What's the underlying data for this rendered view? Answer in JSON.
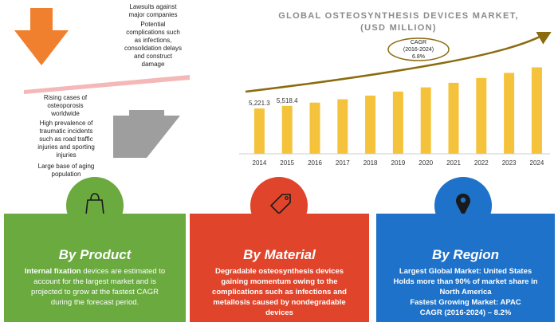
{
  "factors": {
    "restraint": [
      "Lawsuits against",
      "major companies"
    ],
    "restraint2": [
      "Potential",
      "complications such",
      "as infections,",
      "consolidation delays",
      "and construct",
      "damage"
    ],
    "driver1": [
      "Rising cases of",
      "osteoporosis",
      "worldwide"
    ],
    "driver2": [
      "High prevalence of",
      "traumatic incidents",
      "such as road traffic",
      "injuries and sporting",
      "injuries"
    ],
    "driver3": [
      "Large base of aging",
      "population"
    ]
  },
  "chart_data": {
    "type": "bar",
    "title": "GLOBAL OSTEOSYNTHESIS DEVICES MARKET,",
    "subtitle": "(USD MILLION)",
    "categories": [
      "2014",
      "2015",
      "2016",
      "2017",
      "2018",
      "2019",
      "2020",
      "2021",
      "2022",
      "2023",
      "2024"
    ],
    "values": [
      5221.3,
      5518.4,
      5890,
      6280,
      6700,
      7160,
      7650,
      8170,
      8720,
      9310,
      9950
    ],
    "data_labels": [
      "5,221.3",
      "5,518.4",
      "",
      "",
      "",
      "",
      "",
      "",
      "",
      "",
      ""
    ],
    "ylim": [
      0,
      11000
    ],
    "bar_color": "#F5C33B",
    "cagr": {
      "label": "CAGR",
      "period": "(2016-2024)",
      "value": "6.8%"
    }
  },
  "panels": {
    "product": {
      "title": "By Product",
      "color": "#6AAA3F",
      "icon": "shopping-bag-icon",
      "lines": [
        [
          {
            "t": "Internal fixation",
            "b": true
          },
          {
            "t": " devices are estimated to",
            "b": false
          }
        ],
        [
          {
            "t": "account for the largest market and is",
            "b": false
          }
        ],
        [
          {
            "t": "projected to grow at the fastest CAGR",
            "b": false
          }
        ],
        [
          {
            "t": "during the forecast period.",
            "b": false
          }
        ]
      ]
    },
    "material": {
      "title": "By Material",
      "color": "#E0452B",
      "icon": "price-tag-icon",
      "lines": [
        "Degradable osteosynthesis devices",
        "gaining momentum owing to the",
        "complications such as infections and",
        "metallosis caused by nondegradable",
        "devices"
      ]
    },
    "region": {
      "title": "By Region",
      "color": "#1E72C9",
      "icon": "location-pin-icon",
      "lines": [
        "Largest Global Market: United States",
        "Holds more than 90% of market share in",
        "North America",
        "Fastest Growing Market: APAC",
        "CAGR (2016-2024) – 8.2%"
      ]
    }
  }
}
